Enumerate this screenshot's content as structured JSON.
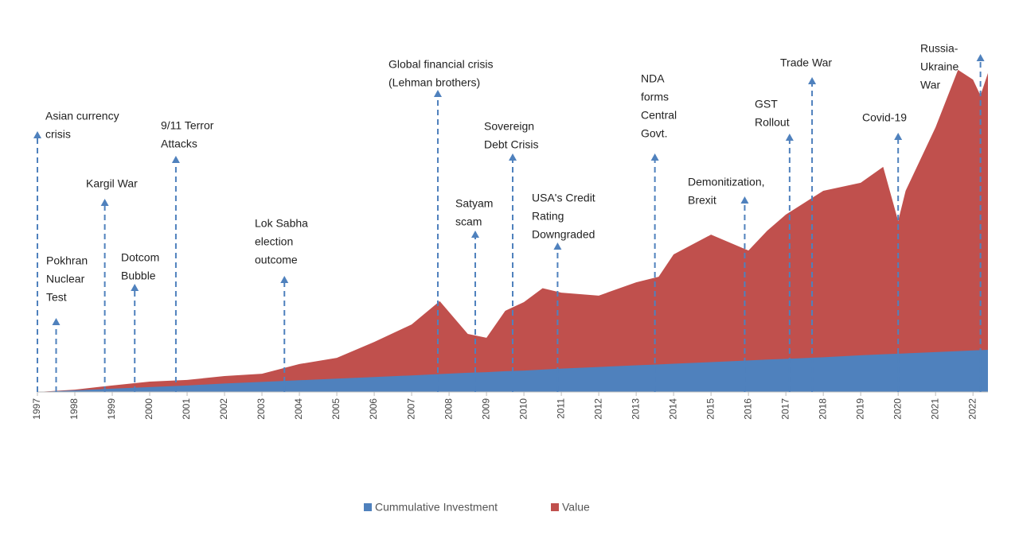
{
  "chart_data": {
    "type": "area",
    "x": [
      1997,
      1998,
      1999,
      2000,
      2001,
      2002,
      2003,
      2004,
      2005,
      2006,
      2007,
      2007.75,
      2008.5,
      2009,
      2009.5,
      2010,
      2010.5,
      2011,
      2012,
      2013,
      2013.6,
      2014,
      2015,
      2016,
      2016.5,
      2017,
      2018,
      2019,
      2019.6,
      2020,
      2020.2,
      2021,
      2021.6,
      2022,
      2022.2,
      2022.4
    ],
    "series": [
      {
        "name": "Value",
        "color": "#c0504d",
        "values": [
          0,
          0.7,
          2,
          3.2,
          3.7,
          4.9,
          5.6,
          8.6,
          10.5,
          15.4,
          20.8,
          28,
          17.9,
          16.7,
          25,
          27.7,
          32,
          30.6,
          29.7,
          33.8,
          35.5,
          42.4,
          48.5,
          43.6,
          49.7,
          54.7,
          62,
          64.5,
          69.4,
          52.7,
          62,
          81.6,
          99.3,
          96.3,
          91.4,
          98.3
        ]
      },
      {
        "name": "Cummulative Investment",
        "color": "#4f81bd",
        "values": [
          0,
          0.5,
          1,
          1.5,
          2,
          2.6,
          3.1,
          3.6,
          4.1,
          4.6,
          5.1,
          5.5,
          5.9,
          6.1,
          6.4,
          6.6,
          6.9,
          7.2,
          7.7,
          8.2,
          8.5,
          8.7,
          9.2,
          9.7,
          10,
          10.2,
          10.7,
          11.3,
          11.6,
          11.8,
          11.9,
          12.3,
          12.6,
          12.8,
          12.9,
          13
        ]
      }
    ],
    "xlim": [
      1997,
      2022.4
    ],
    "ylim": [
      0,
      100
    ],
    "xticks": [
      1997,
      1998,
      1999,
      2000,
      2001,
      2002,
      2003,
      2004,
      2005,
      2006,
      2007,
      2008,
      2009,
      2010,
      2011,
      2012,
      2013,
      2014,
      2015,
      2016,
      2017,
      2018,
      2019,
      2020,
      2021,
      2022
    ],
    "annotations": [
      {
        "lines": [
          "Asian currency",
          "crisis"
        ],
        "x": 1997
      },
      {
        "lines": [
          "Pokhran",
          "Nuclear",
          "Test"
        ],
        "x": 1997.5
      },
      {
        "lines": [
          "Kargil War"
        ],
        "x": 1998.8
      },
      {
        "lines": [
          "Dotcom",
          "Bubble"
        ],
        "x": 1999.6
      },
      {
        "lines": [
          "9/11 Terror",
          "Attacks"
        ],
        "x": 2000.7
      },
      {
        "lines": [
          "Lok Sabha",
          "election",
          "outcome"
        ],
        "x": 2003.6
      },
      {
        "lines": [
          "Global financial crisis",
          "(Lehman brothers)"
        ],
        "x": 2007.7
      },
      {
        "lines": [
          "Satyam",
          "scam"
        ],
        "x": 2008.7
      },
      {
        "lines": [
          "Sovereign",
          "Debt Crisis"
        ],
        "x": 2009.7
      },
      {
        "lines": [
          "USA's Credit",
          "Rating",
          "Downgraded"
        ],
        "x": 2010.9
      },
      {
        "lines": [
          "NDA",
          "forms",
          "Central",
          "Govt."
        ],
        "x": 2013.5
      },
      {
        "lines": [
          "Demonitization,",
          "Brexit"
        ],
        "x": 2015.9
      },
      {
        "lines": [
          "GST",
          "Rollout"
        ],
        "x": 2017.1
      },
      {
        "lines": [
          "Trade War"
        ],
        "x": 2017.7
      },
      {
        "lines": [
          "Covid-19"
        ],
        "x": 2020
      },
      {
        "lines": [
          "Russia-",
          "Ukraine",
          "War"
        ],
        "x": 2022.2
      }
    ],
    "legend": "bottom"
  }
}
